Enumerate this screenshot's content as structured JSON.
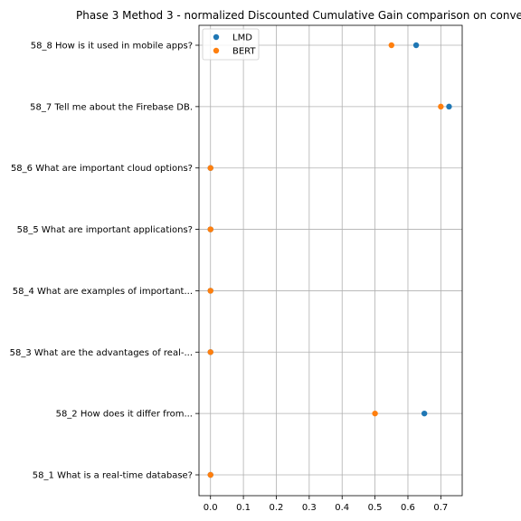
{
  "chart_data": {
    "type": "scatter",
    "title": "Phase 3 Method 3 - normalized Discounted Cumulative Gain comparison on conve",
    "xlabel": "",
    "ylabel": "",
    "xlim": [
      -0.035,
      0.765
    ],
    "x_ticks": [
      0.0,
      0.1,
      0.2,
      0.3,
      0.4,
      0.5,
      0.6,
      0.7
    ],
    "x_tick_labels": [
      "0.0",
      "0.1",
      "0.2",
      "0.3",
      "0.4",
      "0.5",
      "0.6",
      "0.7"
    ],
    "categories": [
      "58_1 What is a real-time database?",
      "58_2 How does it differ from...",
      "58_3 What are the advantages of real-...",
      "58_4 What are examples of important...",
      "58_5 What are important applications?",
      "58_6 What are important cloud options?",
      "58_7 Tell me about the Firebase DB.",
      "58_8 How is it used in mobile apps?"
    ],
    "series": [
      {
        "name": "LMD",
        "color": "#1f77b4",
        "values": [
          0.0,
          0.65,
          0.0,
          0.0,
          0.0,
          0.0,
          0.725,
          0.625
        ]
      },
      {
        "name": "BERT",
        "color": "#ff7f0e",
        "values": [
          0.0,
          0.5,
          0.0,
          0.0,
          0.0,
          0.0,
          0.7,
          0.55
        ]
      }
    ],
    "grid": true,
    "legend_position": "upper-left"
  }
}
